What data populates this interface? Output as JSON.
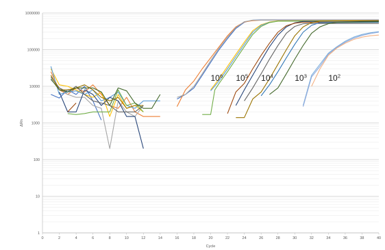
{
  "chart_data": {
    "type": "line",
    "title": "",
    "xlabel": "Cycle",
    "ylabel": "ΔRn",
    "xlim": [
      0,
      40
    ],
    "ylim": [
      1,
      1000000
    ],
    "yscale": "log",
    "grid": true,
    "legend": "none",
    "x_ticks": [
      0,
      2,
      4,
      6,
      8,
      10,
      12,
      14,
      16,
      18,
      20,
      22,
      24,
      26,
      28,
      30,
      32,
      34,
      36,
      38,
      40
    ],
    "y_ticks": [
      1,
      10,
      100,
      1000,
      10000,
      100000,
      1000000
    ],
    "y_tick_labels": [
      "1",
      "10",
      "100",
      "1000",
      "10000",
      "100000",
      "1000000"
    ],
    "annotations": [
      {
        "base": "10",
        "exp": "6",
        "x": 20.0,
        "y": 14000
      },
      {
        "base": "10",
        "exp": "5",
        "x": 23.0,
        "y": 14000
      },
      {
        "base": "10",
        "exp": "4",
        "x": 26.0,
        "y": 14000
      },
      {
        "base": "10",
        "exp": "3",
        "x": 30.0,
        "y": 14000
      },
      {
        "base": "10",
        "exp": "2",
        "x": 34.0,
        "y": 14000
      }
    ],
    "series": [
      {
        "color": "#4472C4",
        "points": [
          [
            1,
            6000
          ],
          [
            2,
            4800
          ],
          [
            3,
            8000
          ],
          [
            4,
            6000
          ],
          [
            5,
            10000
          ],
          [
            6,
            4000
          ],
          [
            7,
            1200
          ],
          [
            null,
            null
          ],
          [
            16,
            4500
          ],
          [
            17,
            6000
          ],
          [
            18,
            9000
          ],
          [
            19,
            20000
          ],
          [
            20,
            45000
          ],
          [
            21,
            100000
          ],
          [
            22,
            200000
          ],
          [
            23,
            380000
          ],
          [
            24,
            560000
          ],
          [
            25,
            640000
          ],
          [
            26,
            650000
          ],
          [
            40,
            650000
          ]
        ]
      },
      {
        "color": "#ED7D31",
        "points": [
          [
            1,
            25000
          ],
          [
            2,
            8000
          ],
          [
            3,
            6000
          ],
          [
            4,
            9000
          ],
          [
            5,
            7000
          ],
          [
            6,
            11000
          ],
          [
            7,
            6000
          ],
          [
            8,
            3000
          ],
          [
            9,
            2500
          ],
          [
            10,
            5000
          ],
          [
            11,
            2000
          ],
          [
            12,
            1500
          ],
          [
            13,
            1500
          ],
          [
            14,
            1500
          ],
          [
            null,
            null
          ],
          [
            16,
            2800
          ],
          [
            17,
            8000
          ],
          [
            18,
            14000
          ],
          [
            19,
            30000
          ],
          [
            20,
            60000
          ],
          [
            21,
            120000
          ],
          [
            22,
            240000
          ],
          [
            23,
            420000
          ],
          [
            24,
            570000
          ],
          [
            25,
            620000
          ],
          [
            26,
            640000
          ],
          [
            40,
            640000
          ]
        ]
      },
      {
        "color": "#A5A5A5",
        "points": [
          [
            1,
            15000
          ],
          [
            2,
            9000
          ],
          [
            3,
            6000
          ],
          [
            4,
            5000
          ],
          [
            5,
            5000
          ],
          [
            6,
            3000
          ],
          [
            7,
            2500
          ],
          [
            8,
            200
          ],
          [
            9,
            4000
          ],
          [
            10,
            2000
          ],
          [
            11,
            1500
          ],
          [
            12,
            3000
          ],
          [
            null,
            null
          ],
          [
            16,
            5000
          ],
          [
            17,
            6000
          ],
          [
            18,
            10000
          ],
          [
            19,
            22000
          ],
          [
            20,
            50000
          ],
          [
            21,
            110000
          ],
          [
            22,
            220000
          ],
          [
            23,
            400000
          ],
          [
            24,
            580000
          ],
          [
            25,
            640000
          ],
          [
            40,
            640000
          ]
        ]
      },
      {
        "color": "#FFC000",
        "points": [
          [
            1,
            30000
          ],
          [
            2,
            11000
          ],
          [
            3,
            10000
          ],
          [
            4,
            8000
          ],
          [
            5,
            6000
          ],
          [
            6,
            5000
          ],
          [
            7,
            7000
          ],
          [
            8,
            1500
          ],
          [
            9,
            6000
          ],
          [
            10,
            2500
          ],
          [
            11,
            3000
          ],
          [
            12,
            2000
          ],
          [
            null,
            null
          ],
          [
            20,
            8000
          ],
          [
            21,
            16000
          ],
          [
            22,
            35000
          ],
          [
            23,
            75000
          ],
          [
            24,
            160000
          ],
          [
            25,
            330000
          ],
          [
            26,
            480000
          ],
          [
            27,
            570000
          ],
          [
            28,
            610000
          ],
          [
            40,
            620000
          ]
        ]
      },
      {
        "color": "#5B9BD5",
        "points": [
          [
            1,
            35000
          ],
          [
            2,
            6000
          ],
          [
            3,
            7000
          ],
          [
            4,
            7500
          ],
          [
            5,
            6000
          ],
          [
            6,
            8000
          ],
          [
            7,
            4000
          ],
          [
            8,
            5000
          ],
          [
            9,
            7000
          ],
          [
            10,
            3000
          ],
          [
            11,
            2500
          ],
          [
            12,
            4000
          ],
          [
            13,
            4000
          ],
          [
            14,
            4000
          ],
          [
            null,
            null
          ],
          [
            20,
            7500
          ],
          [
            21,
            14000
          ],
          [
            22,
            30000
          ],
          [
            23,
            65000
          ],
          [
            24,
            140000
          ],
          [
            25,
            300000
          ],
          [
            26,
            460000
          ],
          [
            27,
            560000
          ],
          [
            28,
            600000
          ],
          [
            40,
            610000
          ]
        ]
      },
      {
        "color": "#70AD47",
        "points": [
          [
            3,
            1800
          ],
          [
            4,
            1700
          ],
          [
            5,
            1800
          ],
          [
            6,
            2000
          ],
          [
            7,
            2000
          ],
          [
            8,
            2000
          ],
          [
            9,
            8000
          ],
          [
            10,
            3000
          ],
          [
            11,
            3500
          ],
          [
            12,
            2000
          ],
          [
            null,
            null
          ],
          [
            19,
            1700
          ],
          [
            20,
            1700
          ],
          [
            20.5,
            8000
          ],
          [
            21,
            12000
          ],
          [
            22,
            25000
          ],
          [
            23,
            55000
          ],
          [
            24,
            120000
          ],
          [
            25,
            260000
          ],
          [
            26,
            430000
          ],
          [
            27,
            550000
          ],
          [
            28,
            600000
          ],
          [
            40,
            610000
          ]
        ]
      },
      {
        "color": "#264478",
        "points": [
          [
            2,
            7000
          ],
          [
            3,
            2000
          ],
          [
            4,
            2000
          ],
          [
            5,
            8000
          ],
          [
            6,
            6000
          ],
          [
            7,
            3000
          ],
          [
            8,
            5000
          ],
          [
            9,
            4000
          ],
          [
            10,
            1500
          ],
          [
            11,
            1500
          ],
          [
            12,
            200
          ],
          [
            null,
            null
          ],
          [
            23,
            3000
          ],
          [
            24,
            8000
          ],
          [
            25,
            20000
          ],
          [
            26,
            50000
          ],
          [
            27,
            120000
          ],
          [
            28,
            250000
          ],
          [
            29,
            420000
          ],
          [
            30,
            540000
          ],
          [
            31,
            590000
          ],
          [
            40,
            600000
          ]
        ]
      },
      {
        "color": "#9E480E",
        "points": [
          [
            3,
            2000
          ],
          [
            4,
            3500
          ],
          [
            null,
            null
          ],
          [
            22,
            1800
          ],
          [
            23,
            7000
          ],
          [
            24,
            12000
          ],
          [
            25,
            30000
          ],
          [
            26,
            70000
          ],
          [
            27,
            150000
          ],
          [
            28,
            300000
          ],
          [
            29,
            450000
          ],
          [
            30,
            530000
          ],
          [
            31,
            560000
          ],
          [
            40,
            560000
          ]
        ]
      },
      {
        "color": "#636363",
        "points": [
          [
            1,
            18000
          ],
          [
            2,
            9000
          ],
          [
            3,
            7000
          ],
          [
            4,
            10000
          ],
          [
            5,
            6000
          ],
          [
            6,
            4000
          ],
          [
            7,
            3500
          ],
          [
            8,
            3000
          ],
          [
            9,
            2000
          ],
          [
            10,
            2000
          ],
          [
            11,
            2000
          ],
          [
            12,
            3000
          ],
          [
            null,
            null
          ],
          [
            24,
            4000
          ],
          [
            25,
            9000
          ],
          [
            26,
            22000
          ],
          [
            27,
            55000
          ],
          [
            28,
            130000
          ],
          [
            29,
            280000
          ],
          [
            30,
            430000
          ],
          [
            31,
            510000
          ],
          [
            32,
            520000
          ],
          [
            40,
            520000
          ]
        ]
      },
      {
        "color": "#997300",
        "points": [
          [
            1,
            20000
          ],
          [
            2,
            8000
          ],
          [
            3,
            8000
          ],
          [
            4,
            9000
          ],
          [
            5,
            11000
          ],
          [
            6,
            8000
          ],
          [
            7,
            5000
          ],
          [
            8,
            4000
          ],
          [
            9,
            5000
          ],
          [
            10,
            2500
          ],
          [
            11,
            3000
          ],
          [
            12,
            3000
          ],
          [
            null,
            null
          ],
          [
            23,
            1400
          ],
          [
            24,
            1400
          ],
          [
            25,
            4500
          ],
          [
            26,
            7000
          ],
          [
            27,
            16000
          ],
          [
            28,
            40000
          ],
          [
            29,
            100000
          ],
          [
            30,
            240000
          ],
          [
            31,
            420000
          ],
          [
            32,
            550000
          ],
          [
            33,
            600000
          ],
          [
            40,
            620000
          ]
        ]
      },
      {
        "color": "#2E75B6",
        "points": [
          [
            26,
            5500
          ],
          [
            27,
            11000
          ],
          [
            28,
            25000
          ],
          [
            29,
            60000
          ],
          [
            30,
            140000
          ],
          [
            31,
            300000
          ],
          [
            32,
            460000
          ],
          [
            33,
            550000
          ],
          [
            40,
            560000
          ]
        ]
      },
      {
        "color": "#43682B",
        "points": [
          [
            1,
            16000
          ],
          [
            2,
            8000
          ],
          [
            3,
            7000
          ],
          [
            4,
            9000
          ],
          [
            5,
            9000
          ],
          [
            6,
            9000
          ],
          [
            7,
            7000
          ],
          [
            8,
            3000
          ],
          [
            9,
            9000
          ],
          [
            10,
            7500
          ],
          [
            11,
            3500
          ],
          [
            12,
            2500
          ],
          [
            13,
            2500
          ],
          [
            14,
            6000
          ],
          [
            null,
            null
          ],
          [
            27,
            6000
          ],
          [
            28,
            9000
          ],
          [
            29,
            22000
          ],
          [
            30,
            55000
          ],
          [
            31,
            130000
          ],
          [
            32,
            280000
          ],
          [
            33,
            420000
          ],
          [
            34,
            510000
          ],
          [
            35,
            560000
          ],
          [
            40,
            580000
          ]
        ]
      },
      {
        "color": "#7CAFDD",
        "points": [
          [
            31,
            3000
          ],
          [
            32,
            20000
          ],
          [
            33,
            40000
          ],
          [
            34,
            80000
          ],
          [
            35,
            120000
          ],
          [
            36,
            170000
          ],
          [
            37,
            220000
          ],
          [
            38,
            260000
          ],
          [
            39,
            290000
          ],
          [
            40,
            310000
          ]
        ]
      },
      {
        "color": "#8FAADC",
        "points": [
          [
            31,
            2800
          ],
          [
            32,
            18000
          ],
          [
            33,
            35000
          ],
          [
            34,
            75000
          ],
          [
            35,
            115000
          ],
          [
            36,
            160000
          ],
          [
            37,
            205000
          ],
          [
            38,
            245000
          ],
          [
            39,
            275000
          ],
          [
            40,
            300000
          ]
        ]
      },
      {
        "color": "#F4B183",
        "points": [
          [
            32,
            10000
          ],
          [
            33,
            30000
          ],
          [
            34,
            70000
          ],
          [
            35,
            110000
          ],
          [
            36,
            150000
          ],
          [
            37,
            190000
          ],
          [
            38,
            220000
          ],
          [
            39,
            240000
          ],
          [
            40,
            250000
          ]
        ]
      }
    ]
  }
}
